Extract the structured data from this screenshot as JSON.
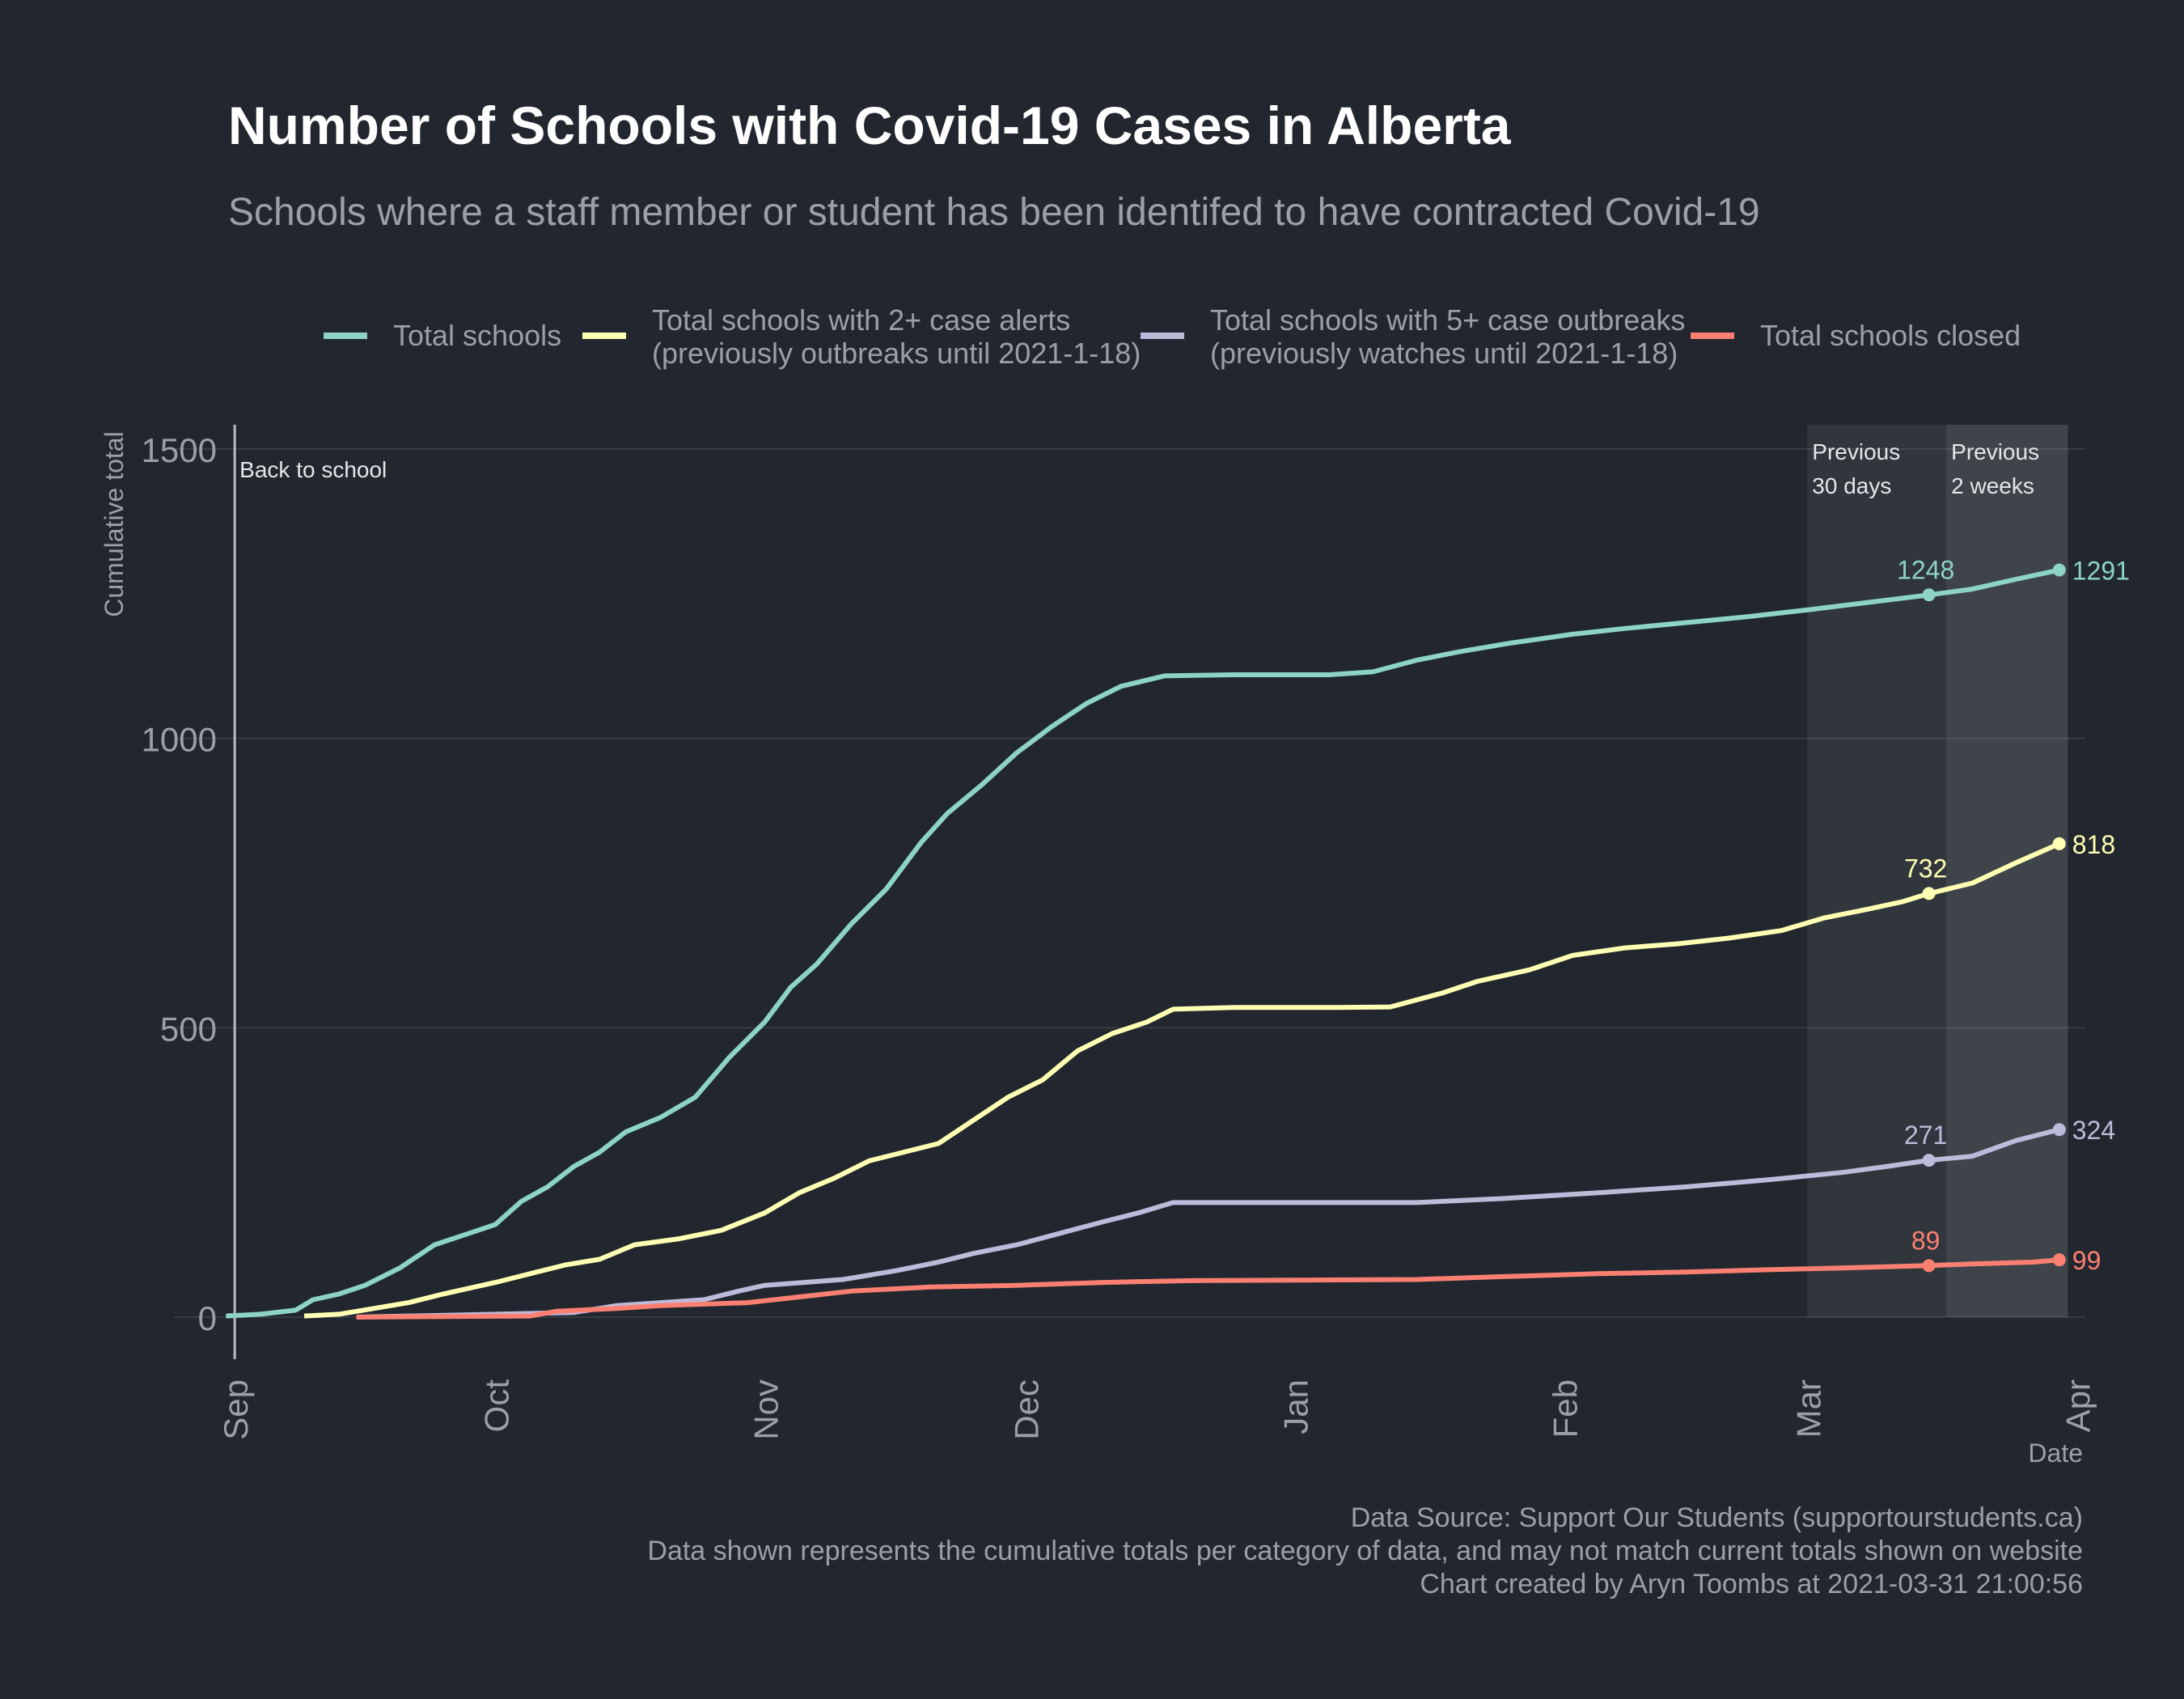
{
  "chart_data": {
    "type": "line",
    "title": "Number of Schools with Covid-19 Cases in Alberta",
    "subtitle": "Schools where a staff member or student has been identifed to have contracted Covid-19",
    "xlabel": "Date",
    "ylabel": "Cumulative total",
    "ylim": [
      0,
      1550
    ],
    "xlim": [
      "2020-08-25",
      "2021-04-02"
    ],
    "y_ticks": [
      0,
      500,
      1000,
      1500
    ],
    "x_ticks": [
      {
        "label": "Sep",
        "date": "2020-09-01"
      },
      {
        "label": "Oct",
        "date": "2020-10-01"
      },
      {
        "label": "Nov",
        "date": "2020-11-01"
      },
      {
        "label": "Dec",
        "date": "2020-12-01"
      },
      {
        "label": "Jan",
        "date": "2021-01-01"
      },
      {
        "label": "Feb",
        "date": "2021-02-01"
      },
      {
        "label": "Mar",
        "date": "2021-03-01"
      },
      {
        "label": "Apr",
        "date": "2021-04-01"
      }
    ],
    "grid": true,
    "legend_position": "top",
    "background": "#22272f",
    "series": [
      {
        "name": "Total schools",
        "color": "#8dd3c7",
        "points": [
          [
            "2020-08-31",
            2
          ],
          [
            "2020-09-04",
            5
          ],
          [
            "2020-09-08",
            12
          ],
          [
            "2020-09-10",
            30
          ],
          [
            "2020-09-13",
            40
          ],
          [
            "2020-09-16",
            55
          ],
          [
            "2020-09-20",
            85
          ],
          [
            "2020-09-24",
            125
          ],
          [
            "2020-09-28",
            145
          ],
          [
            "2020-10-01",
            160
          ],
          [
            "2020-10-04",
            200
          ],
          [
            "2020-10-07",
            225
          ],
          [
            "2020-10-10",
            260
          ],
          [
            "2020-10-13",
            285
          ],
          [
            "2020-10-16",
            320
          ],
          [
            "2020-10-20",
            345
          ],
          [
            "2020-10-24",
            380
          ],
          [
            "2020-10-28",
            450
          ],
          [
            "2020-11-01",
            510
          ],
          [
            "2020-11-04",
            570
          ],
          [
            "2020-11-07",
            610
          ],
          [
            "2020-11-11",
            680
          ],
          [
            "2020-11-15",
            740
          ],
          [
            "2020-11-19",
            820
          ],
          [
            "2020-11-22",
            870
          ],
          [
            "2020-11-26",
            920
          ],
          [
            "2020-11-30",
            975
          ],
          [
            "2020-12-04",
            1020
          ],
          [
            "2020-12-08",
            1060
          ],
          [
            "2020-12-12",
            1090
          ],
          [
            "2020-12-17",
            1108
          ],
          [
            "2020-12-25",
            1110
          ],
          [
            "2021-01-05",
            1110
          ],
          [
            "2021-01-10",
            1115
          ],
          [
            "2021-01-15",
            1135
          ],
          [
            "2021-01-20",
            1150
          ],
          [
            "2021-01-26",
            1165
          ],
          [
            "2021-02-02",
            1180
          ],
          [
            "2021-02-08",
            1190
          ],
          [
            "2021-02-15",
            1200
          ],
          [
            "2021-02-22",
            1210
          ],
          [
            "2021-03-01",
            1222
          ],
          [
            "2021-03-08",
            1235
          ],
          [
            "2021-03-15",
            1248
          ],
          [
            "2021-03-20",
            1258
          ],
          [
            "2021-03-25",
            1275
          ],
          [
            "2021-03-30",
            1291
          ]
        ],
        "labels": [
          {
            "date": "2021-03-15",
            "value": 1248
          },
          {
            "date": "2021-03-30",
            "value": 1291
          }
        ]
      },
      {
        "name": "Total schools with 2+ case alerts\n(previously outbreaks until 2021-1-18)",
        "color": "#ffffb3",
        "points": [
          [
            "2020-09-09",
            2
          ],
          [
            "2020-09-13",
            5
          ],
          [
            "2020-09-17",
            15
          ],
          [
            "2020-09-21",
            25
          ],
          [
            "2020-09-25",
            40
          ],
          [
            "2020-10-01",
            60
          ],
          [
            "2020-10-05",
            75
          ],
          [
            "2020-10-09",
            90
          ],
          [
            "2020-10-13",
            100
          ],
          [
            "2020-10-17",
            125
          ],
          [
            "2020-10-22",
            135
          ],
          [
            "2020-10-27",
            150
          ],
          [
            "2020-11-01",
            180
          ],
          [
            "2020-11-05",
            215
          ],
          [
            "2020-11-09",
            240
          ],
          [
            "2020-11-13",
            270
          ],
          [
            "2020-11-17",
            285
          ],
          [
            "2020-11-21",
            300
          ],
          [
            "2020-11-25",
            340
          ],
          [
            "2020-11-29",
            380
          ],
          [
            "2020-12-03",
            410
          ],
          [
            "2020-12-07",
            460
          ],
          [
            "2020-12-11",
            490
          ],
          [
            "2020-12-15",
            510
          ],
          [
            "2020-12-18",
            532
          ],
          [
            "2020-12-25",
            535
          ],
          [
            "2021-01-05",
            535
          ],
          [
            "2021-01-12",
            536
          ],
          [
            "2021-01-18",
            560
          ],
          [
            "2021-01-22",
            580
          ],
          [
            "2021-01-28",
            600
          ],
          [
            "2021-02-02",
            625
          ],
          [
            "2021-02-08",
            638
          ],
          [
            "2021-02-14",
            645
          ],
          [
            "2021-02-20",
            655
          ],
          [
            "2021-02-26",
            668
          ],
          [
            "2021-03-03",
            690
          ],
          [
            "2021-03-08",
            705
          ],
          [
            "2021-03-12",
            718
          ],
          [
            "2021-03-15",
            732
          ],
          [
            "2021-03-20",
            750
          ],
          [
            "2021-03-25",
            785
          ],
          [
            "2021-03-30",
            818
          ]
        ],
        "labels": [
          {
            "date": "2021-03-15",
            "value": 732
          },
          {
            "date": "2021-03-30",
            "value": 818
          }
        ]
      },
      {
        "name": "Total schools with 5+ case outbreaks\n(previously watches until 2021-1-18)",
        "color": "#bebada",
        "points": [
          [
            "2020-09-15",
            0
          ],
          [
            "2020-10-10",
            8
          ],
          [
            "2020-10-15",
            20
          ],
          [
            "2020-10-25",
            30
          ],
          [
            "2020-10-29",
            45
          ],
          [
            "2020-11-01",
            55
          ],
          [
            "2020-11-10",
            65
          ],
          [
            "2020-11-16",
            80
          ],
          [
            "2020-11-21",
            95
          ],
          [
            "2020-11-25",
            110
          ],
          [
            "2020-11-30",
            125
          ],
          [
            "2020-12-05",
            145
          ],
          [
            "2020-12-10",
            165
          ],
          [
            "2020-12-14",
            180
          ],
          [
            "2020-12-18",
            198
          ],
          [
            "2020-12-25",
            198
          ],
          [
            "2021-01-15",
            198
          ],
          [
            "2021-01-25",
            205
          ],
          [
            "2021-02-05",
            215
          ],
          [
            "2021-02-15",
            225
          ],
          [
            "2021-02-25",
            238
          ],
          [
            "2021-03-05",
            250
          ],
          [
            "2021-03-10",
            260
          ],
          [
            "2021-03-15",
            271
          ],
          [
            "2021-03-20",
            278
          ],
          [
            "2021-03-25",
            305
          ],
          [
            "2021-03-30",
            324
          ]
        ],
        "labels": [
          {
            "date": "2021-03-15",
            "value": 271
          },
          {
            "date": "2021-03-30",
            "value": 324
          }
        ]
      },
      {
        "name": "Total schools closed",
        "color": "#fb8072",
        "points": [
          [
            "2020-09-15",
            0
          ],
          [
            "2020-10-05",
            2
          ],
          [
            "2020-10-08",
            10
          ],
          [
            "2020-10-15",
            15
          ],
          [
            "2020-10-20",
            20
          ],
          [
            "2020-10-30",
            25
          ],
          [
            "2020-11-05",
            35
          ],
          [
            "2020-11-11",
            45
          ],
          [
            "2020-11-20",
            52
          ],
          [
            "2020-11-30",
            55
          ],
          [
            "2020-12-10",
            60
          ],
          [
            "2020-12-20",
            63
          ],
          [
            "2021-01-15",
            65
          ],
          [
            "2021-01-25",
            70
          ],
          [
            "2021-02-05",
            75
          ],
          [
            "2021-02-15",
            78
          ],
          [
            "2021-02-25",
            82
          ],
          [
            "2021-03-05",
            85
          ],
          [
            "2021-03-15",
            89
          ],
          [
            "2021-03-20",
            92
          ],
          [
            "2021-03-27",
            95
          ],
          [
            "2021-03-30",
            99
          ]
        ],
        "labels": [
          {
            "date": "2021-03-15",
            "value": 89
          },
          {
            "date": "2021-03-30",
            "value": 99
          }
        ]
      }
    ],
    "annotations": [
      {
        "type": "vline",
        "date": "2020-09-01",
        "label": "Back to school"
      },
      {
        "type": "band",
        "from": "2021-03-01",
        "to": "2021-03-31",
        "label": "Previous\n30 days"
      },
      {
        "type": "band",
        "from": "2021-03-17",
        "to": "2021-03-31",
        "label": "Previous\n2 weeks"
      }
    ],
    "caption": [
      "Data Source: Support Our Students (supportourstudents.ca)",
      "Data shown represents the cumulative totals per category of data, and may not match current totals shown on website",
      "Chart created by Aryn Toombs at 2021-03-31 21:00:56"
    ]
  }
}
